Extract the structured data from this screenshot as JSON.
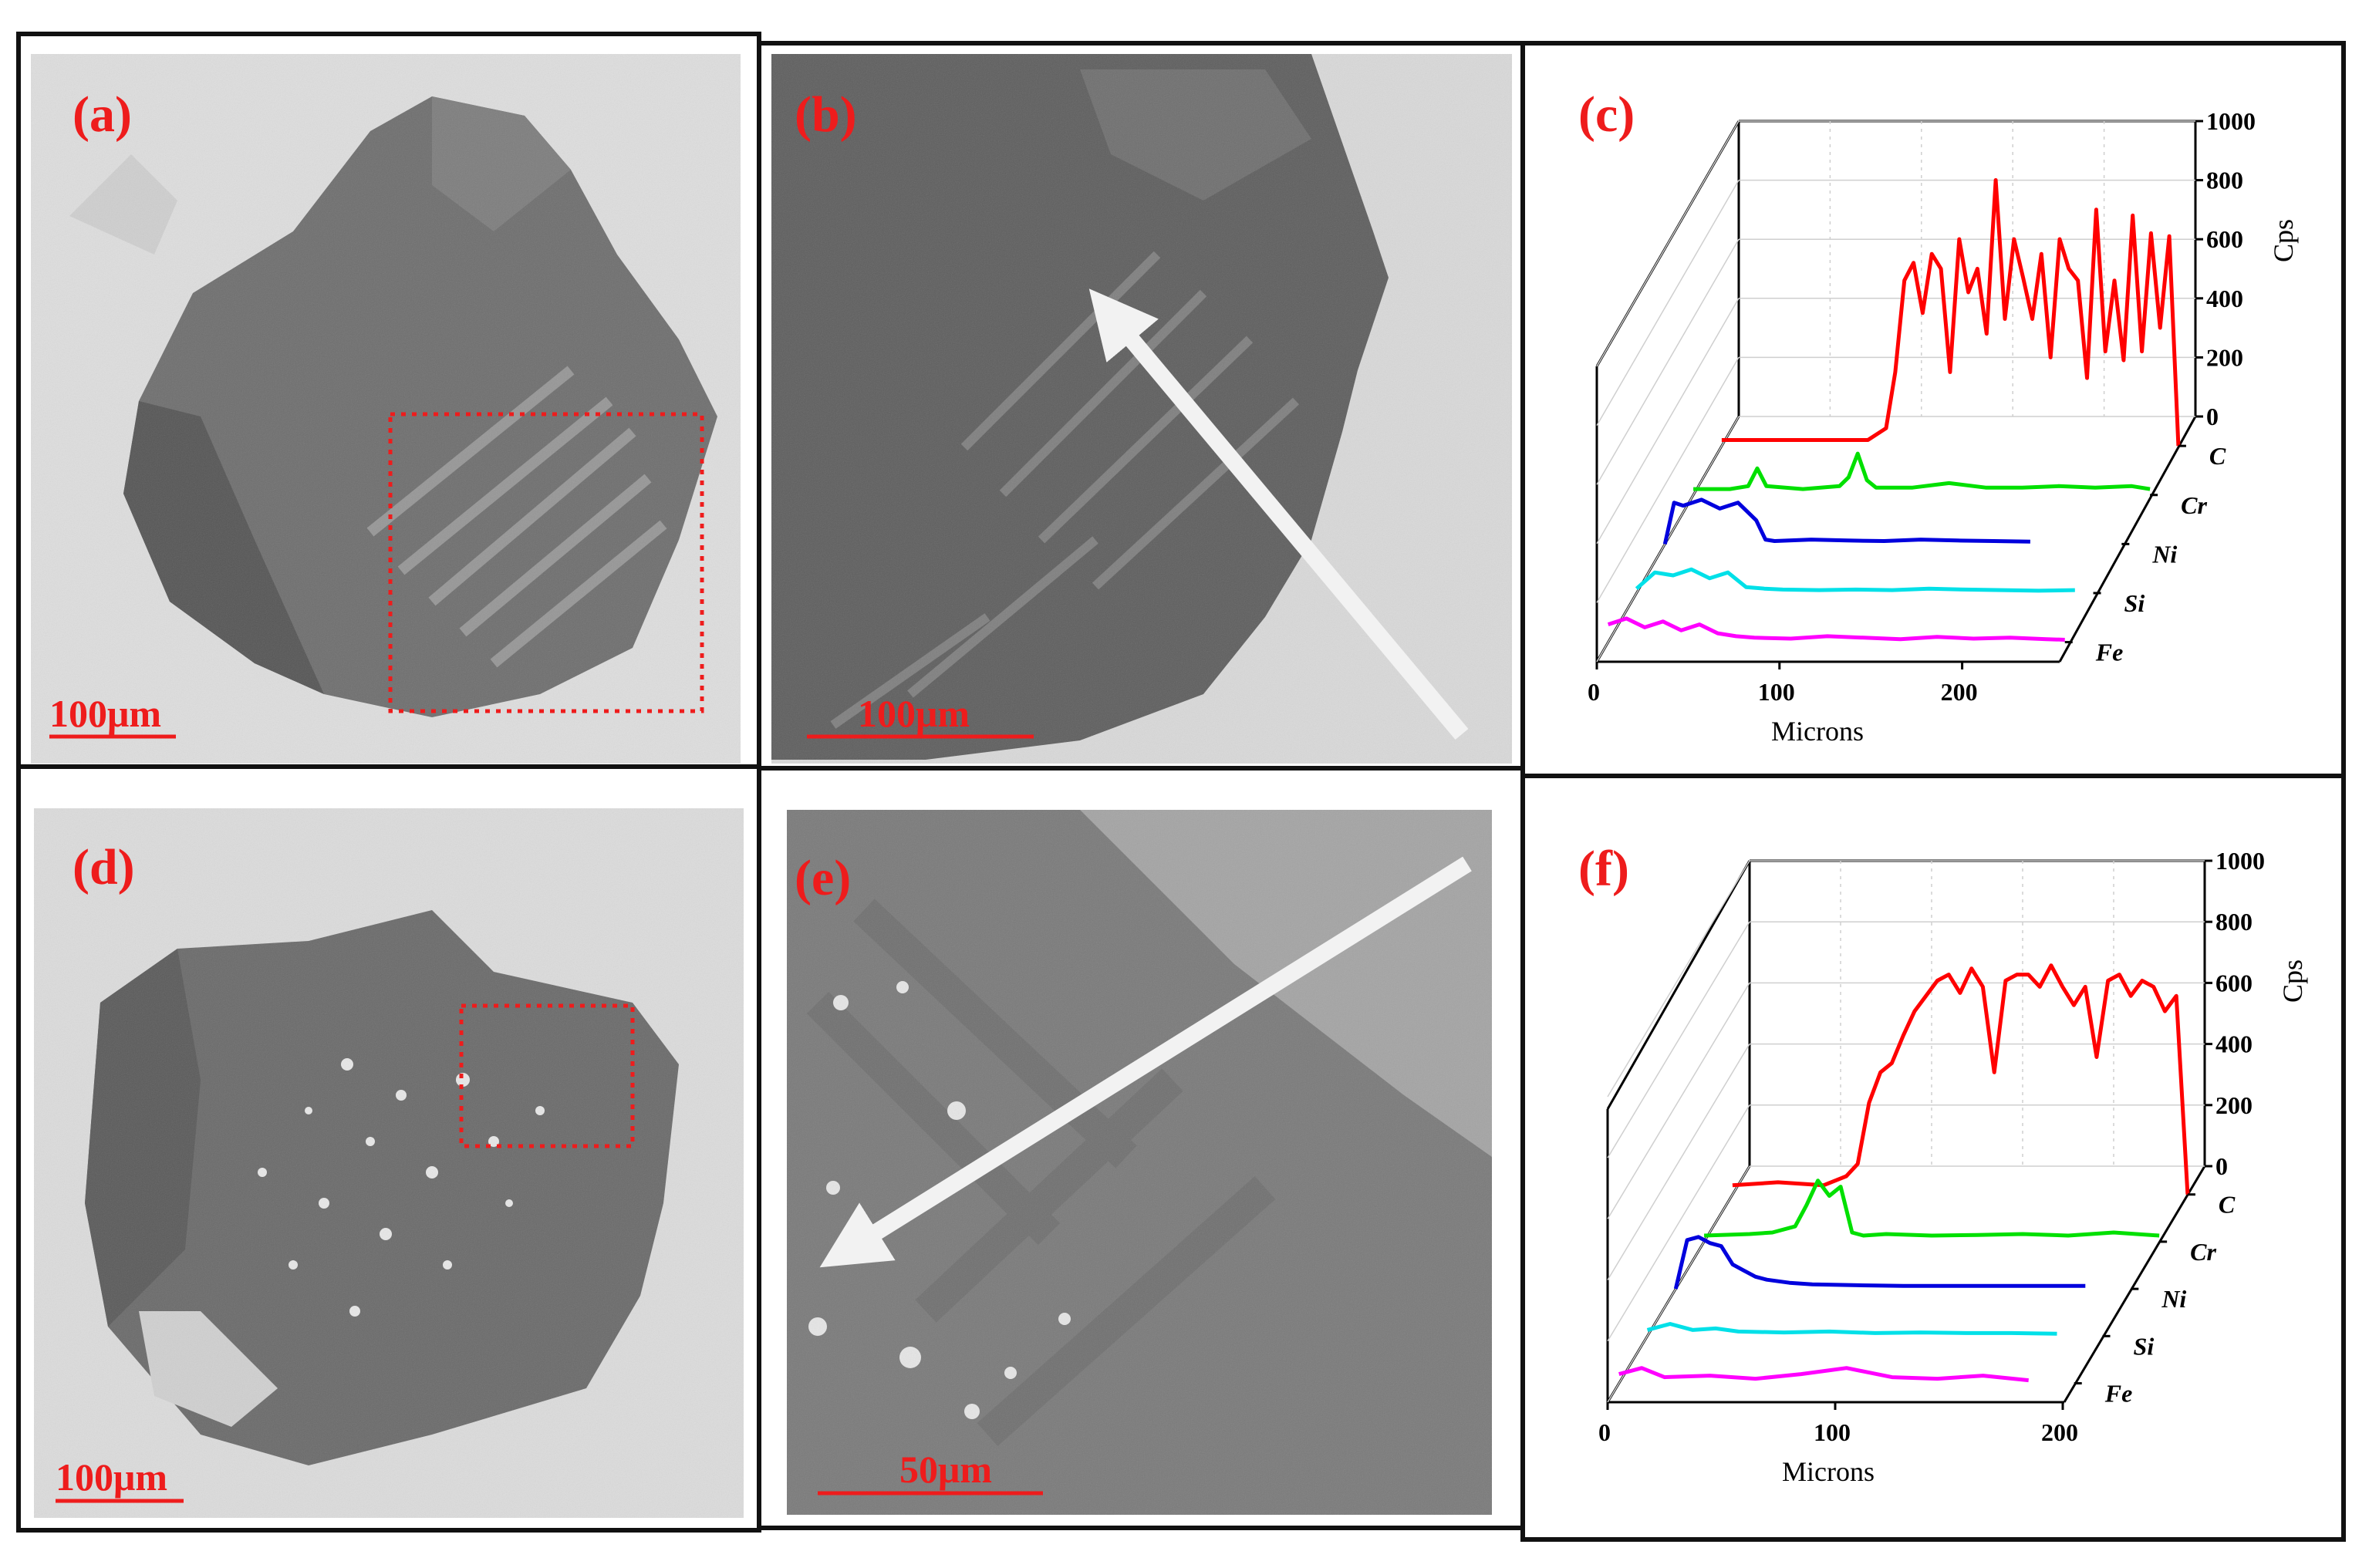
{
  "panels": [
    {
      "id": "a",
      "label": "(a)",
      "scale_bar": "100μm"
    },
    {
      "id": "b",
      "label": "(b)",
      "scale_bar": "100μm"
    },
    {
      "id": "c",
      "label": "(c)"
    },
    {
      "id": "d",
      "label": "(d)",
      "scale_bar": "100μm"
    },
    {
      "id": "e",
      "label": "(e)",
      "scale_bar": "50μm"
    },
    {
      "id": "f",
      "label": "(f)"
    }
  ],
  "colors": {
    "label": "#ee1c1c",
    "C": "#ff0000",
    "Cr": "#00e000",
    "Ni": "#0000dd",
    "Si": "#00e0e8",
    "Fe": "#ff00ff"
  },
  "chart_data": [
    {
      "panel": "c",
      "type": "line",
      "xlabel": "Microns",
      "ylabel": "Cps",
      "x_ticks": [
        "0",
        "100",
        "200"
      ],
      "y_ticks": [
        "0",
        "200",
        "400",
        "600",
        "800",
        "1000"
      ],
      "xlim": [
        0,
        250
      ],
      "ylim": [
        0,
        1000
      ],
      "series": [
        {
          "name": "C",
          "x": [
            0,
            20,
            40,
            60,
            80,
            90,
            95,
            100,
            105,
            110,
            115,
            120,
            125,
            130,
            135,
            140,
            145,
            150,
            155,
            160,
            165,
            170,
            175,
            180,
            185,
            190,
            195,
            200,
            205,
            210,
            215,
            220,
            225,
            230,
            235,
            240,
            245,
            250
          ],
          "values": [
            20,
            20,
            20,
            20,
            20,
            60,
            250,
            560,
            620,
            450,
            650,
            600,
            250,
            700,
            520,
            600,
            380,
            900,
            430,
            700,
            570,
            430,
            650,
            300,
            700,
            600,
            560,
            230,
            800,
            320,
            560,
            290,
            780,
            320,
            720,
            400,
            710,
            0
          ]
        },
        {
          "name": "Cr",
          "x": [
            0,
            20,
            30,
            35,
            40,
            60,
            80,
            85,
            90,
            95,
            100,
            120,
            140,
            160,
            180,
            200,
            220,
            240,
            250
          ],
          "values": [
            20,
            20,
            30,
            90,
            30,
            20,
            30,
            60,
            140,
            50,
            25,
            25,
            40,
            25,
            25,
            30,
            25,
            30,
            20
          ]
        },
        {
          "name": "Ni",
          "x": [
            0,
            5,
            10,
            20,
            30,
            40,
            45,
            50,
            55,
            60,
            80,
            100,
            120,
            140,
            160,
            180,
            200
          ],
          "values": [
            0,
            140,
            130,
            150,
            120,
            140,
            110,
            80,
            15,
            10,
            15,
            12,
            10,
            15,
            12,
            10,
            8
          ]
        },
        {
          "name": "Si",
          "x": [
            0,
            10,
            20,
            30,
            40,
            50,
            60,
            70,
            80,
            100,
            120,
            140,
            160,
            180,
            200,
            220,
            240
          ],
          "values": [
            15,
            70,
            60,
            80,
            50,
            70,
            20,
            15,
            12,
            10,
            12,
            10,
            15,
            12,
            10,
            8,
            10
          ]
        },
        {
          "name": "Fe",
          "x": [
            0,
            10,
            20,
            30,
            40,
            50,
            60,
            70,
            80,
            100,
            120,
            140,
            160,
            180,
            200,
            220,
            240,
            250
          ],
          "values": [
            60,
            80,
            50,
            70,
            40,
            60,
            30,
            20,
            15,
            12,
            20,
            15,
            10,
            18,
            12,
            15,
            10,
            8
          ]
        }
      ],
      "series_labels": [
        "C",
        "Cr",
        "Ni",
        "Si",
        "Fe"
      ]
    },
    {
      "panel": "f",
      "type": "line",
      "xlabel": "Microns",
      "ylabel": "Cps",
      "x_ticks": [
        "0",
        "100",
        "200"
      ],
      "y_ticks": [
        "0",
        "200",
        "400",
        "600",
        "800",
        "1000"
      ],
      "xlim": [
        0,
        200
      ],
      "ylim": [
        0,
        1000
      ],
      "series": [
        {
          "name": "C",
          "x": [
            0,
            20,
            40,
            50,
            55,
            60,
            65,
            70,
            75,
            80,
            85,
            90,
            95,
            100,
            105,
            110,
            115,
            120,
            125,
            130,
            135,
            140,
            145,
            150,
            155,
            160,
            165,
            170,
            175,
            180,
            185,
            190,
            195,
            200
          ],
          "values": [
            30,
            40,
            30,
            60,
            100,
            300,
            400,
            430,
            520,
            600,
            650,
            700,
            720,
            660,
            740,
            680,
            400,
            700,
            720,
            720,
            680,
            750,
            680,
            620,
            680,
            450,
            700,
            720,
            650,
            700,
            680,
            600,
            650,
            0
          ]
        },
        {
          "name": "Cr",
          "x": [
            0,
            20,
            30,
            40,
            45,
            50,
            55,
            60,
            65,
            70,
            80,
            100,
            120,
            140,
            160,
            180,
            200
          ],
          "values": [
            20,
            25,
            30,
            50,
            120,
            200,
            150,
            180,
            30,
            20,
            25,
            20,
            22,
            25,
            20,
            30,
            20
          ]
        },
        {
          "name": "Ni",
          "x": [
            0,
            5,
            10,
            15,
            20,
            25,
            30,
            35,
            40,
            50,
            60,
            80,
            100,
            120,
            140,
            160,
            180
          ],
          "values": [
            0,
            160,
            170,
            150,
            140,
            80,
            60,
            40,
            30,
            20,
            15,
            12,
            10,
            10,
            10,
            10,
            10
          ]
        },
        {
          "name": "Si",
          "x": [
            0,
            10,
            20,
            30,
            40,
            60,
            80,
            100,
            120,
            140,
            160,
            180
          ],
          "values": [
            20,
            40,
            20,
            25,
            15,
            12,
            15,
            10,
            12,
            10,
            10,
            8
          ]
        },
        {
          "name": "Fe",
          "x": [
            0,
            10,
            20,
            40,
            60,
            80,
            100,
            120,
            140,
            160,
            180
          ],
          "values": [
            30,
            50,
            20,
            25,
            15,
            30,
            50,
            20,
            15,
            25,
            10
          ]
        }
      ],
      "series_labels": [
        "C",
        "Cr",
        "Ni",
        "Si",
        "Fe"
      ]
    }
  ]
}
